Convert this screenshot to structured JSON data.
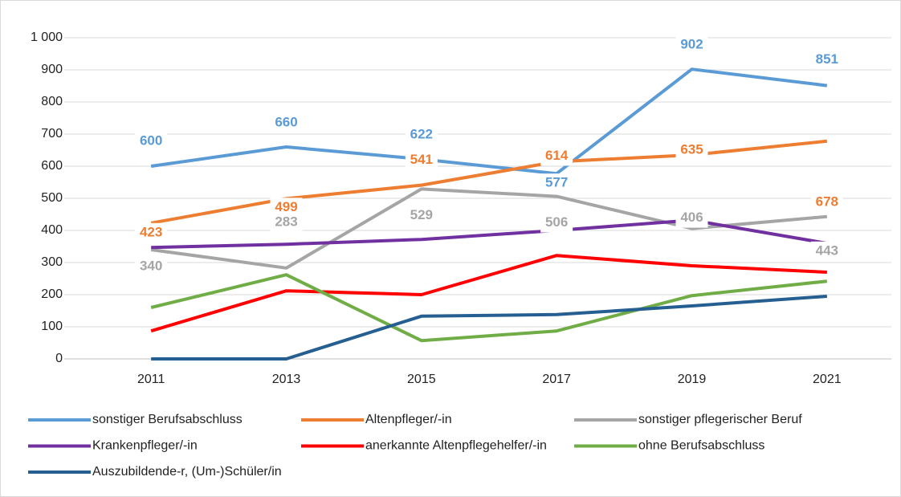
{
  "chart_data": {
    "type": "line",
    "categories": [
      "2011",
      "2013",
      "2015",
      "2017",
      "2019",
      "2021"
    ],
    "series": [
      {
        "name": "sonstiger Berufsabschluss",
        "color": "#5b9bd5",
        "values": [
          600,
          660,
          622,
          577,
          902,
          851
        ],
        "data_labels": true
      },
      {
        "name": "Altenpfleger/-in",
        "color": "#ed7d31",
        "values": [
          423,
          499,
          541,
          614,
          635,
          678
        ],
        "data_labels": true
      },
      {
        "name": "sonstiger pflegerischer Beruf",
        "color": "#a5a5a5",
        "values": [
          340,
          283,
          529,
          506,
          406,
          443
        ],
        "data_labels": true
      },
      {
        "name": "Krankenpfleger/-in",
        "color": "#7030a0",
        "values": [
          347,
          357,
          372,
          400,
          432,
          360
        ]
      },
      {
        "name": "anerkannte Altenpflegehelfer/-in",
        "color": "#ff0000",
        "values": [
          87,
          212,
          200,
          322,
          290,
          270
        ]
      },
      {
        "name": "ohne Berufsabschluss",
        "color": "#70ad47",
        "values": [
          160,
          262,
          57,
          87,
          197,
          242
        ]
      },
      {
        "name": "Auszubildende-r, (Um-)Schüler/in",
        "color": "#255e91",
        "values": [
          0,
          0,
          133,
          138,
          165,
          195
        ]
      }
    ],
    "ylim": [
      0,
      1000
    ],
    "yticks": [
      0,
      100,
      200,
      300,
      400,
      500,
      600,
      700,
      800,
      900,
      {
        "value": 1000,
        "label": "1 000"
      }
    ],
    "grid": true,
    "legend": "bottom"
  }
}
